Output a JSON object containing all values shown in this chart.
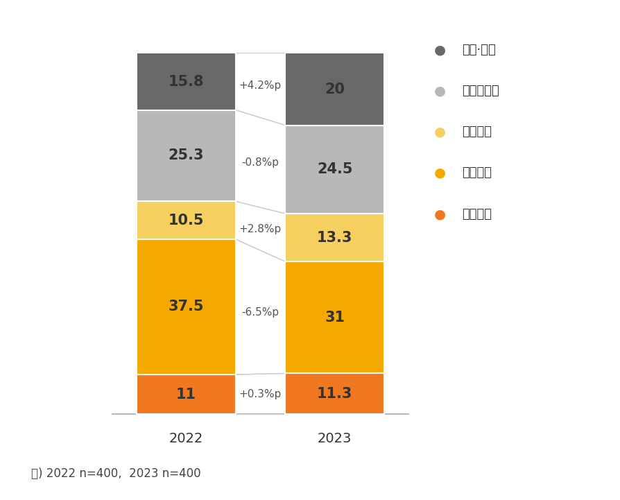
{
  "years": [
    "2022",
    "2023"
  ],
  "legend_labels": [
    "상속·증여",
    "부동산투자",
    "금융투자",
    "사업소득",
    "근로소득"
  ],
  "values_2022": [
    11.0,
    37.5,
    10.5,
    25.3,
    15.8
  ],
  "values_2023": [
    11.3,
    31.0,
    13.3,
    24.5,
    20.0
  ],
  "colors": [
    "#f07820",
    "#f5a800",
    "#f5d060",
    "#b8b8b8",
    "#686868"
  ],
  "legend_colors": [
    "#686868",
    "#b8b8b8",
    "#f5d060",
    "#f5a800",
    "#f07820"
  ],
  "changes": [
    "+0.3%p",
    "-6.5%p",
    "+2.8%p",
    "-0.8%p",
    "+4.2%p"
  ],
  "footnote": "주) 2022 n=400,  2023 n=400",
  "label_color": "#333333",
  "label_fontsize": 15,
  "change_fontsize": 11,
  "legend_fontsize": 13,
  "footnote_fontsize": 12,
  "xtick_fontsize": 14
}
